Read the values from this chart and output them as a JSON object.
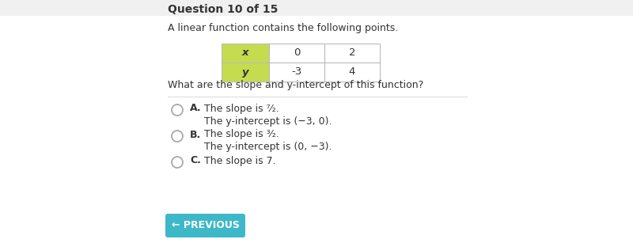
{
  "title": "Question 10 of 15",
  "subtitle": "A linear function contains the following points.",
  "question": "What are the slope and y-intercept of this function?",
  "table": {
    "headers": [
      "x",
      "0",
      "2"
    ],
    "row2": [
      "y",
      "-3",
      "4"
    ],
    "header_bg": "#c5dc4e",
    "cell_bg": "#ffffff",
    "border_color": "#bbbbbb"
  },
  "option_labels": [
    "A.",
    "B.",
    "C."
  ],
  "option_line1": [
    "The slope is ⁷⁄₂.",
    "The slope is ³⁄₂.",
    "The slope is 7."
  ],
  "option_line2": [
    "The y-intercept is (−3, 0).",
    "The y-intercept is (0, −3).",
    ""
  ],
  "button_text": "← PREVIOUS",
  "button_color": "#3db8c8",
  "bg_color": "#ffffff",
  "text_color": "#333333",
  "divider_color": "#dddddd",
  "light_bg": "#f5f5f5"
}
